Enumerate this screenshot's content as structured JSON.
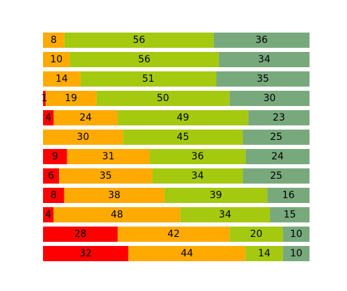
{
  "chart_data": {
    "type": "bar",
    "orientation": "horizontal",
    "stacked": true,
    "normalized": true,
    "title": "",
    "xlabel": "",
    "ylabel": "",
    "axes_visible": false,
    "grid": false,
    "xlim": [
      0,
      100
    ],
    "colors": [
      "#ff0000",
      "#ffaa00",
      "#a5c90f",
      "#78a97d"
    ],
    "rows": [
      [
        0,
        8,
        56,
        36
      ],
      [
        0,
        10,
        56,
        34
      ],
      [
        0,
        14,
        51,
        35
      ],
      [
        1,
        19,
        50,
        30
      ],
      [
        4,
        24,
        49,
        23
      ],
      [
        0,
        30,
        45,
        25
      ],
      [
        9,
        31,
        36,
        24
      ],
      [
        6,
        35,
        34,
        25
      ],
      [
        8,
        38,
        39,
        16
      ],
      [
        4,
        48,
        34,
        15
      ],
      [
        28,
        42,
        20,
        10
      ],
      [
        32,
        44,
        14,
        10
      ]
    ]
  }
}
